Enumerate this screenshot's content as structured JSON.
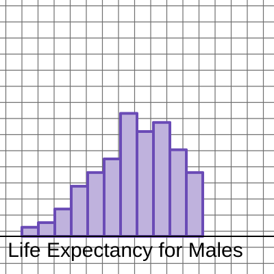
{
  "chart_data": {
    "type": "bar",
    "title": "",
    "xlabel": "Life Expectancy for Males",
    "ylabel": "",
    "grid": true,
    "values": [
      1,
      1.5,
      3,
      5.5,
      7,
      8.5,
      13.5,
      11.5,
      12.5,
      9.5,
      7
    ],
    "ylim": [
      0,
      13.5
    ],
    "colors": {
      "bar_fill": "#bfb2dd",
      "bar_stroke": "#6a4bb6",
      "grid": "#6f6f6f",
      "axis": "#000000",
      "background": "#ffffff"
    }
  }
}
